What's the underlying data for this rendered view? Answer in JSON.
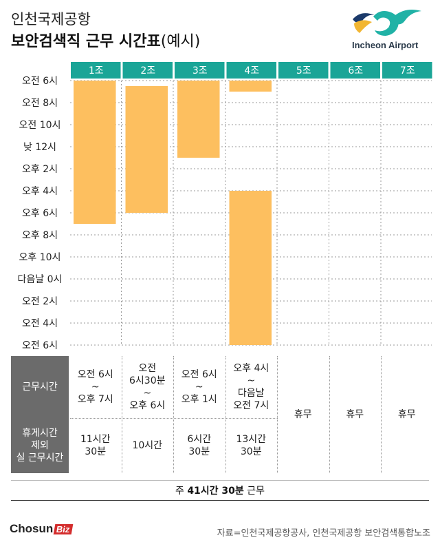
{
  "header": {
    "title_line1": "인천국제공항",
    "title_line2": "보안검색직 근무 시간표",
    "title_suffix": "(예시)",
    "logo_text": "Incheon Airport"
  },
  "colors": {
    "header_teal": "#1aa597",
    "bar_orange": "#fdbf5f",
    "label_gray": "#6b6b6b",
    "logo_navy": "#1b3a6b",
    "logo_teal": "#20b2a6",
    "logo_gold": "#f2b632",
    "brand_red": "#d42d2d"
  },
  "chart_data": {
    "type": "bar",
    "orientation": "vertical-timeline",
    "categories": [
      "1조",
      "2조",
      "3조",
      "4조",
      "5조",
      "6조",
      "7조"
    ],
    "y_tick_labels": [
      "오전 6시",
      "오전 8시",
      "오전 10시",
      "낮 12시",
      "오후 2시",
      "오후 4시",
      "오후 6시",
      "오후 8시",
      "오후 10시",
      "다음날 0시",
      "오전 2시",
      "오전 4시",
      "오전 6시"
    ],
    "y_range_hours": [
      6,
      30
    ],
    "grid": "dotted",
    "shifts": [
      {
        "team": "1조",
        "segments": [
          [
            6,
            19
          ]
        ]
      },
      {
        "team": "2조",
        "segments": [
          [
            6.5,
            18
          ]
        ]
      },
      {
        "team": "3조",
        "segments": [
          [
            6,
            13
          ]
        ]
      },
      {
        "team": "4조",
        "segments": [
          [
            6,
            7
          ],
          [
            16,
            30
          ]
        ]
      },
      {
        "team": "5조",
        "segments": []
      },
      {
        "team": "6조",
        "segments": []
      },
      {
        "team": "7조",
        "segments": []
      }
    ]
  },
  "table": {
    "row1_label": "근무시간",
    "row2_label": "휴게시간\n제외\n실 근무시간",
    "work_times": [
      "오전 6시\n~\n오후 7시",
      "오전\n6시30분\n~\n오후 6시",
      "오전 6시\n~\n오후 1시",
      "오후 4시\n~\n다음날\n오전 7시",
      "",
      "",
      ""
    ],
    "actual_hours": [
      "11시간\n30분",
      "10시간",
      "6시간\n30분",
      "13시간\n30분",
      "",
      "",
      ""
    ],
    "rest_label": "휴무"
  },
  "total": {
    "prefix": "주 ",
    "value": "41시간 30분",
    "suffix": " 근무"
  },
  "footer": {
    "brand_main": "Chosun",
    "brand_biz": "Biz",
    "source": "자료=인천국제공항공사, 인천국제공항 보안검색통합노조"
  }
}
